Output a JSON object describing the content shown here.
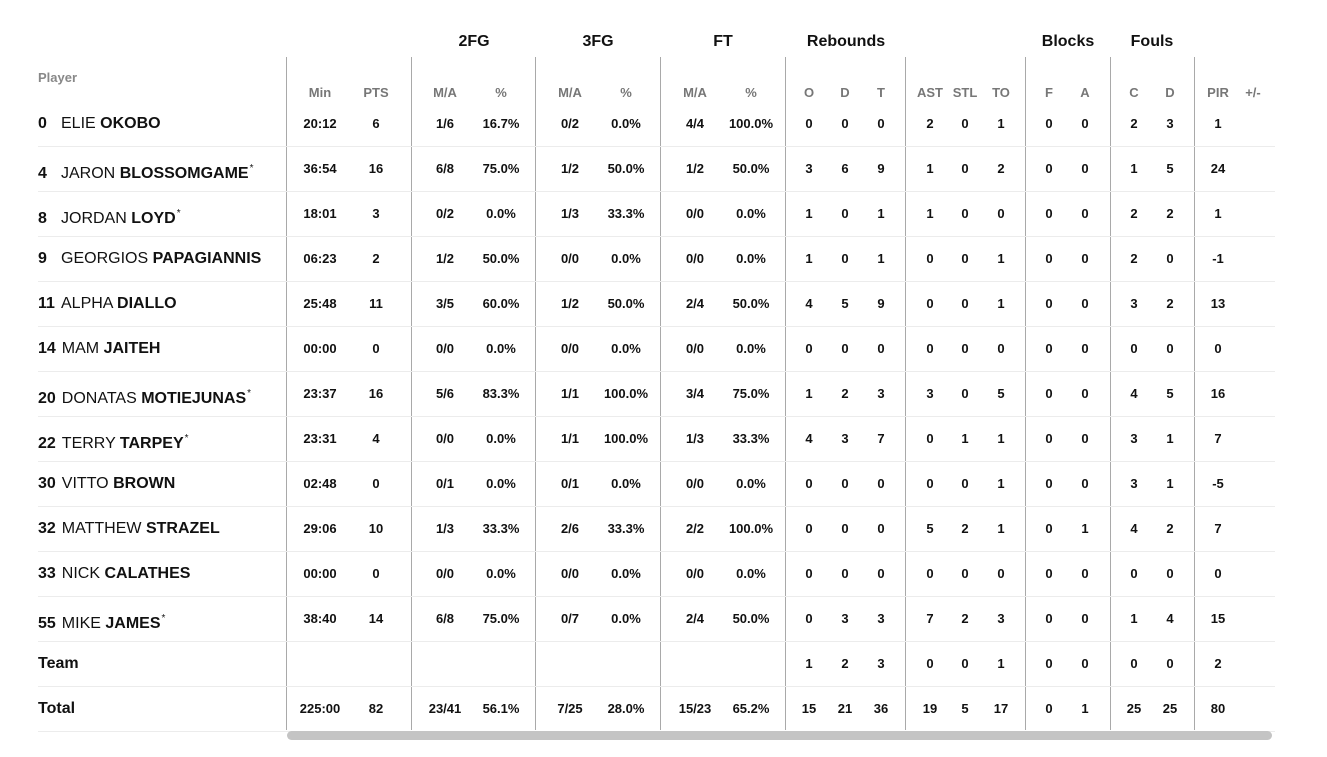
{
  "group_headers": [
    {
      "label": "2FG"
    },
    {
      "label": "3FG"
    },
    {
      "label": "FT"
    },
    {
      "label": "Rebounds"
    },
    {
      "label": "Blocks"
    },
    {
      "label": "Fouls"
    }
  ],
  "player_header": "Player",
  "sub_headers": [
    "Min",
    "PTS",
    "M/A",
    "%",
    "M/A",
    "%",
    "M/A",
    "%",
    "O",
    "D",
    "T",
    "AST",
    "STL",
    "TO",
    "F",
    "A",
    "C",
    "D",
    "PIR",
    "+/-"
  ],
  "rows": [
    {
      "num": "0",
      "first": "ELIE",
      "last": "OKOBO",
      "star": "",
      "stats": [
        "20:12",
        "6",
        "1/6",
        "16.7%",
        "0/2",
        "0.0%",
        "4/4",
        "100.0%",
        "0",
        "0",
        "0",
        "2",
        "0",
        "1",
        "0",
        "0",
        "2",
        "3",
        "1",
        ""
      ]
    },
    {
      "num": "4",
      "first": "JARON",
      "last": "BLOSSOMGAME",
      "star": "*",
      "stats": [
        "36:54",
        "16",
        "6/8",
        "75.0%",
        "1/2",
        "50.0%",
        "1/2",
        "50.0%",
        "3",
        "6",
        "9",
        "1",
        "0",
        "2",
        "0",
        "0",
        "1",
        "5",
        "24",
        ""
      ]
    },
    {
      "num": "8",
      "first": "JORDAN",
      "last": "LOYD",
      "star": "*",
      "stats": [
        "18:01",
        "3",
        "0/2",
        "0.0%",
        "1/3",
        "33.3%",
        "0/0",
        "0.0%",
        "1",
        "0",
        "1",
        "1",
        "0",
        "0",
        "0",
        "0",
        "2",
        "2",
        "1",
        ""
      ]
    },
    {
      "num": "9",
      "first": "GEORGIOS",
      "last": "PAPAGIANNIS",
      "star": "",
      "stats": [
        "06:23",
        "2",
        "1/2",
        "50.0%",
        "0/0",
        "0.0%",
        "0/0",
        "0.0%",
        "1",
        "0",
        "1",
        "0",
        "0",
        "1",
        "0",
        "0",
        "2",
        "0",
        "-1",
        ""
      ]
    },
    {
      "num": "11",
      "first": "ALPHA",
      "last": "DIALLO",
      "star": "",
      "stats": [
        "25:48",
        "11",
        "3/5",
        "60.0%",
        "1/2",
        "50.0%",
        "2/4",
        "50.0%",
        "4",
        "5",
        "9",
        "0",
        "0",
        "1",
        "0",
        "0",
        "3",
        "2",
        "13",
        ""
      ]
    },
    {
      "num": "14",
      "first": "MAM",
      "last": "JAITEH",
      "star": "",
      "stats": [
        "00:00",
        "0",
        "0/0",
        "0.0%",
        "0/0",
        "0.0%",
        "0/0",
        "0.0%",
        "0",
        "0",
        "0",
        "0",
        "0",
        "0",
        "0",
        "0",
        "0",
        "0",
        "0",
        ""
      ]
    },
    {
      "num": "20",
      "first": "DONATAS",
      "last": "MOTIEJUNAS",
      "star": "*",
      "stats": [
        "23:37",
        "16",
        "5/6",
        "83.3%",
        "1/1",
        "100.0%",
        "3/4",
        "75.0%",
        "1",
        "2",
        "3",
        "3",
        "0",
        "5",
        "0",
        "0",
        "4",
        "5",
        "16",
        ""
      ]
    },
    {
      "num": "22",
      "first": "TERRY",
      "last": "TARPEY",
      "star": "*",
      "stats": [
        "23:31",
        "4",
        "0/0",
        "0.0%",
        "1/1",
        "100.0%",
        "1/3",
        "33.3%",
        "4",
        "3",
        "7",
        "0",
        "1",
        "1",
        "0",
        "0",
        "3",
        "1",
        "7",
        ""
      ]
    },
    {
      "num": "30",
      "first": "VITTO",
      "last": "BROWN",
      "star": "",
      "stats": [
        "02:48",
        "0",
        "0/1",
        "0.0%",
        "0/1",
        "0.0%",
        "0/0",
        "0.0%",
        "0",
        "0",
        "0",
        "0",
        "0",
        "1",
        "0",
        "0",
        "3",
        "1",
        "-5",
        ""
      ]
    },
    {
      "num": "32",
      "first": "MATTHEW",
      "last": "STRAZEL",
      "star": "",
      "stats": [
        "29:06",
        "10",
        "1/3",
        "33.3%",
        "2/6",
        "33.3%",
        "2/2",
        "100.0%",
        "0",
        "0",
        "0",
        "5",
        "2",
        "1",
        "0",
        "1",
        "4",
        "2",
        "7",
        ""
      ]
    },
    {
      "num": "33",
      "first": "NICK",
      "last": "CALATHES",
      "star": "",
      "stats": [
        "00:00",
        "0",
        "0/0",
        "0.0%",
        "0/0",
        "0.0%",
        "0/0",
        "0.0%",
        "0",
        "0",
        "0",
        "0",
        "0",
        "0",
        "0",
        "0",
        "0",
        "0",
        "0",
        ""
      ]
    },
    {
      "num": "55",
      "first": "MIKE",
      "last": "JAMES",
      "star": "*",
      "stats": [
        "38:40",
        "14",
        "6/8",
        "75.0%",
        "0/7",
        "0.0%",
        "2/4",
        "50.0%",
        "0",
        "3",
        "3",
        "7",
        "2",
        "3",
        "0",
        "0",
        "1",
        "4",
        "15",
        ""
      ]
    },
    {
      "label": "Team",
      "stats": [
        "",
        "",
        "",
        "",
        "",
        "",
        "",
        "",
        "1",
        "2",
        "3",
        "0",
        "0",
        "1",
        "0",
        "0",
        "0",
        "0",
        "2",
        ""
      ]
    },
    {
      "label": "Total",
      "stats": [
        "225:00",
        "82",
        "23/41",
        "56.1%",
        "7/25",
        "28.0%",
        "15/23",
        "65.2%",
        "15",
        "21",
        "36",
        "19",
        "5",
        "17",
        "0",
        "1",
        "25",
        "25",
        "80",
        ""
      ]
    }
  ]
}
